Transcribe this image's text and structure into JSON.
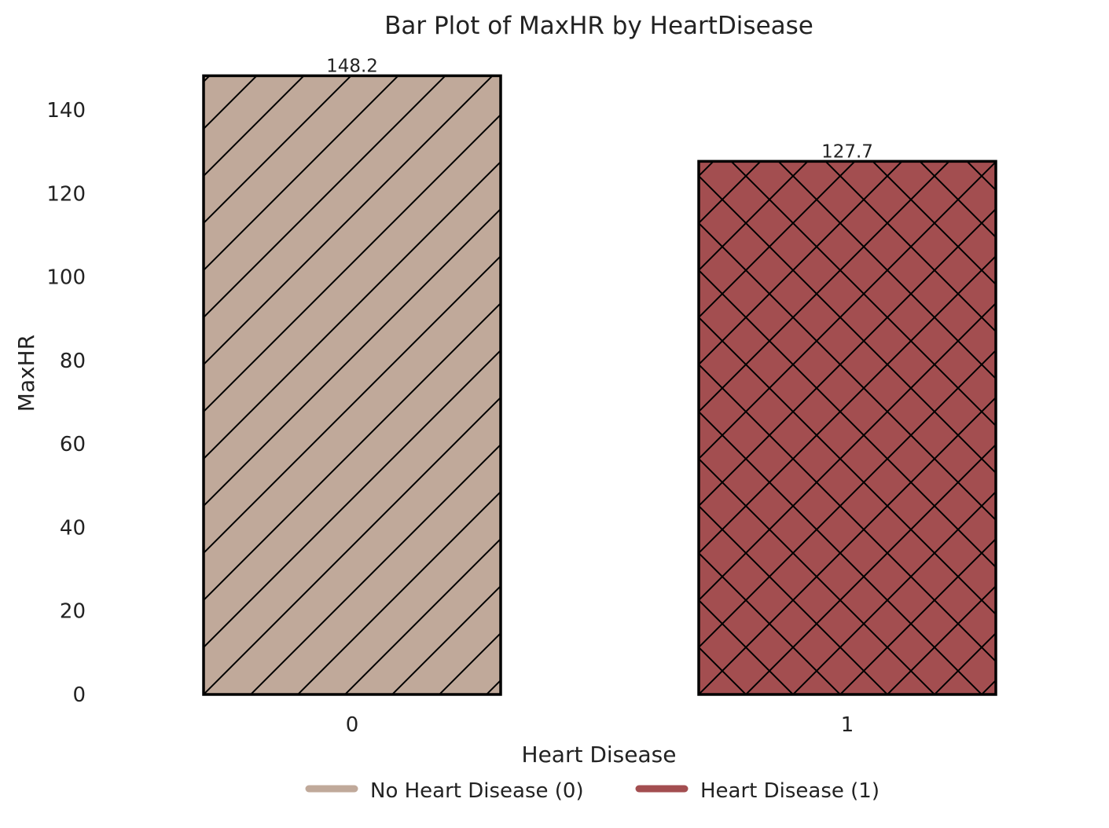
{
  "chart_data": {
    "type": "bar",
    "title": "Bar Plot of MaxHR by HeartDisease",
    "xlabel": "Heart Disease",
    "ylabel": "MaxHR",
    "categories": [
      "0",
      "1"
    ],
    "values": [
      148.2,
      127.7
    ],
    "data_labels": [
      "148.2",
      "127.7"
    ],
    "ylim": [
      0,
      150
    ],
    "yticks": [
      0,
      20,
      40,
      60,
      80,
      100,
      120,
      140
    ],
    "grid": false,
    "legend": {
      "placement": "bottom-center",
      "entries": [
        {
          "label": "No Heart Disease (0)",
          "color": "#c0a99a"
        },
        {
          "label": "Heart Disease (1)",
          "color": "#a34e50"
        }
      ]
    },
    "bar_colors": [
      "#c0a99a",
      "#a34e50"
    ],
    "bar_hatches": [
      "diagonal",
      "crosshatch"
    ],
    "edge_color": "#000000"
  }
}
